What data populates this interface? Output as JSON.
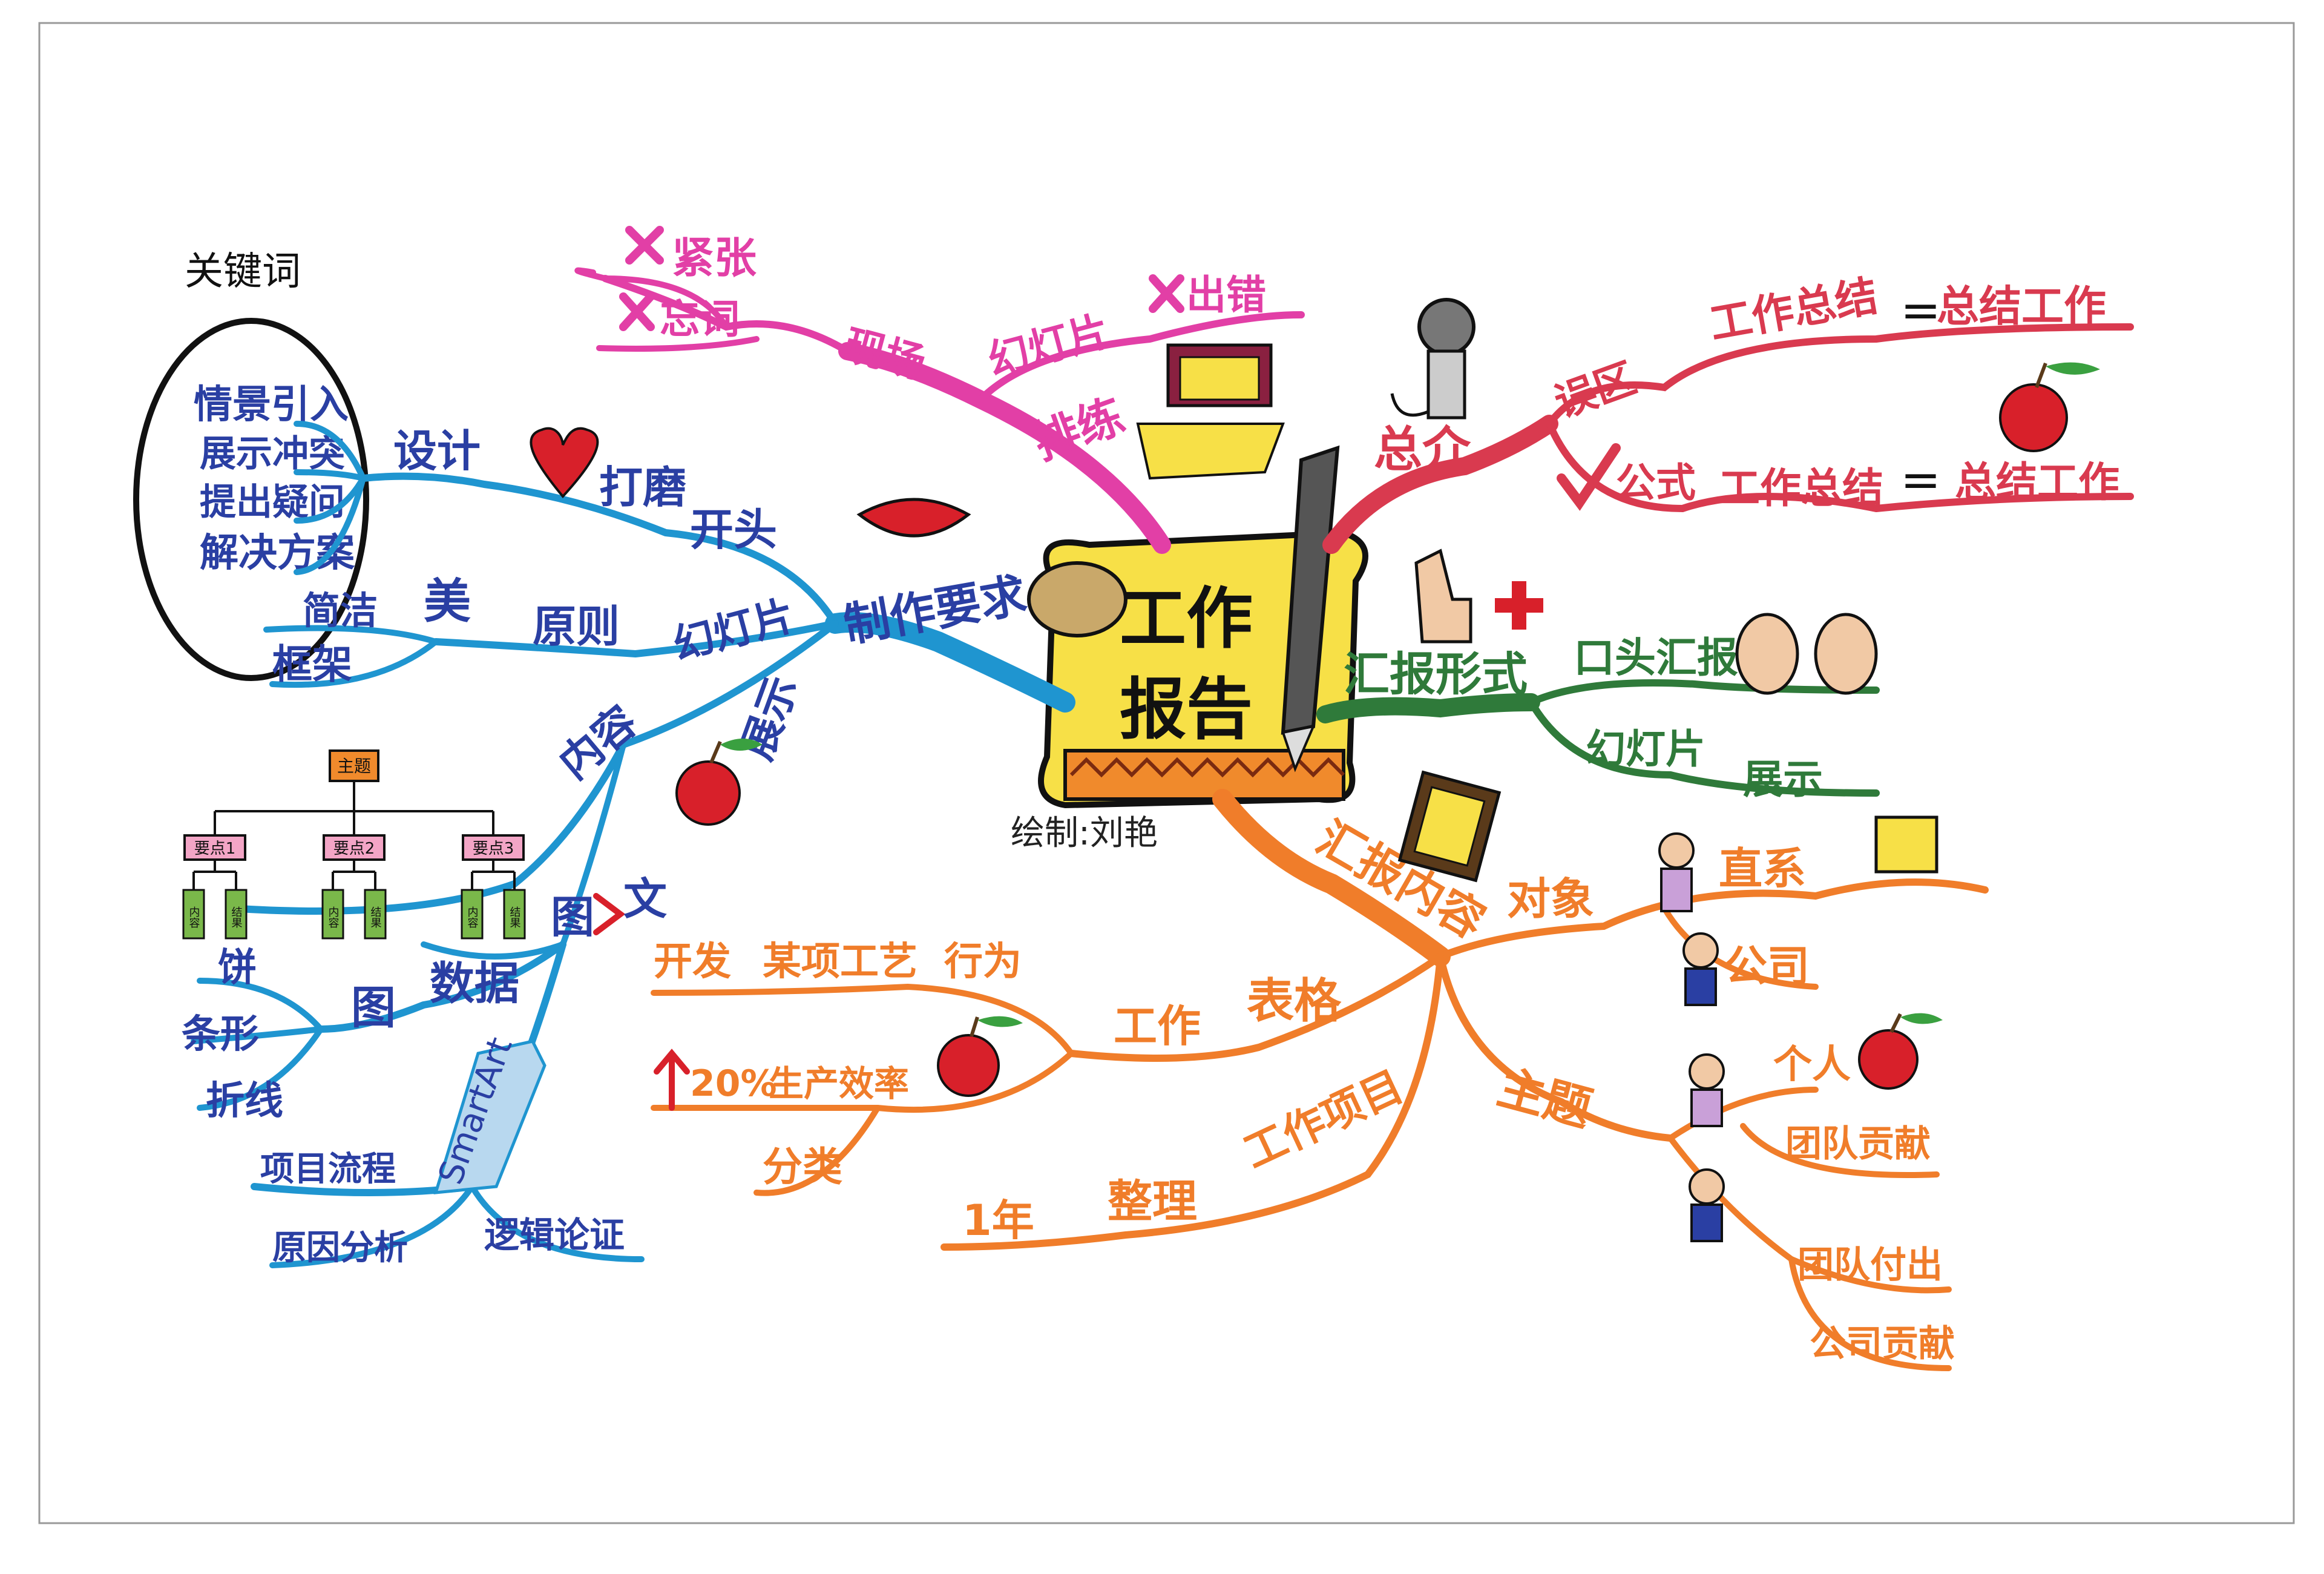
{
  "center": {
    "line1": "工作",
    "line2": "报告",
    "author": "绘制:刘艳"
  },
  "keyword_box": {
    "title": "关键词",
    "items": [
      "情景引入",
      "展示冲突",
      "提出疑问",
      "解决方案"
    ]
  },
  "branches": {
    "rehearsal": {
      "label": "排练",
      "scene": "现场",
      "nervous": "紧张",
      "forget": "忘词",
      "slides": "幻灯片",
      "error": "出错"
    },
    "overview": {
      "label": "总介",
      "misunderstanding": "误区",
      "wrong_left": "工作总结",
      "wrong_right": "总结工作",
      "formula": "公式",
      "right_left": "工作总结",
      "right_right": "总结工作"
    },
    "form": {
      "label": "汇报形式",
      "oral": "口头汇报",
      "slides": "幻灯片",
      "show": "展示"
    },
    "content": {
      "label": "汇报内容",
      "audience": "对象",
      "direct": "直系",
      "company": "公司",
      "theme": "主题",
      "personal": "个人",
      "team_contribution": "团队贡献",
      "team_effort": "团队付出",
      "company_contribution": "公司贡献"
    },
    "work": {
      "table_work": "工作",
      "table": "表格",
      "develop": "开发",
      "process": "某项工艺",
      "behavior": "行为",
      "percent": "20%",
      "efficiency": "生产效率",
      "classify": "分类",
      "year": "1年",
      "organize": "整理",
      "work_item": "工作项目"
    },
    "production": {
      "label": "制作要求",
      "opening": "开头",
      "polish": "打磨",
      "design": "设计",
      "slides": "幻灯片",
      "principle": "原则",
      "beauty": "美",
      "concise": "简洁",
      "framework": "框架",
      "content": "内容",
      "display": "展示",
      "image_text_a": "图",
      "image_text_b": "文",
      "data": "数据",
      "chart": "图",
      "pie": "饼",
      "bar": "条形",
      "line": "折线",
      "smartart": "SmartArt",
      "project_flow": "项目流程",
      "cause_analysis": "原因分析",
      "logic_proof": "逻辑论证",
      "tree_root": "主题",
      "tree_nodes": [
        "要点1",
        "要点2",
        "要点3"
      ],
      "tree_leaves": [
        "内容",
        "结果",
        "内容",
        "结果",
        "内容",
        "结果"
      ]
    }
  },
  "colors": {
    "rehearsal": "#e23fa6",
    "overview": "#d93a4f",
    "form": "#2f7a3a",
    "content": "#f07d2a",
    "production": "#1f95d0",
    "production_text": "#2a3fa3",
    "scroll": "#f7e047",
    "apple": "#d8202a"
  }
}
